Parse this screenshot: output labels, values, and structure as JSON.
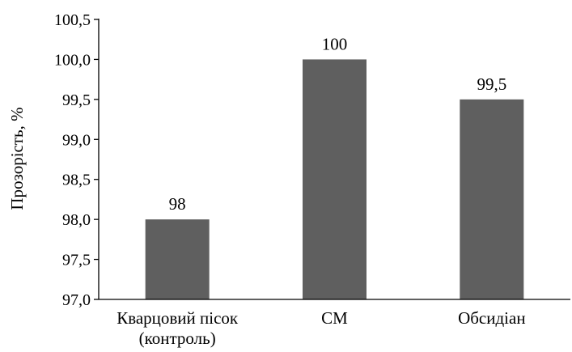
{
  "chart_data": {
    "type": "bar",
    "categories": [
      "Кварцовий пісок (контроль)",
      "СМ",
      "Обсидіан"
    ],
    "category_lines": [
      [
        "Кварцовий пісок",
        "(контроль)"
      ],
      [
        "СМ"
      ],
      [
        "Обсидіан"
      ]
    ],
    "values": [
      98.0,
      100.0,
      99.5
    ],
    "data_labels": [
      "98",
      "100",
      "99,5"
    ],
    "title": "",
    "xlabel": "",
    "ylabel": "Прозорість, %",
    "ylim": [
      97.0,
      100.5
    ],
    "yticks": [
      97.0,
      97.5,
      98.0,
      98.5,
      99.0,
      99.5,
      100.0,
      100.5
    ],
    "ytick_labels": [
      "97,0",
      "97,5",
      "98,0",
      "98,5",
      "99,0",
      "99,5",
      "100,0",
      "100,5"
    ],
    "grid": false,
    "legend": "none",
    "bar_color": "#5f5f5f",
    "axis_color": "#000000"
  }
}
